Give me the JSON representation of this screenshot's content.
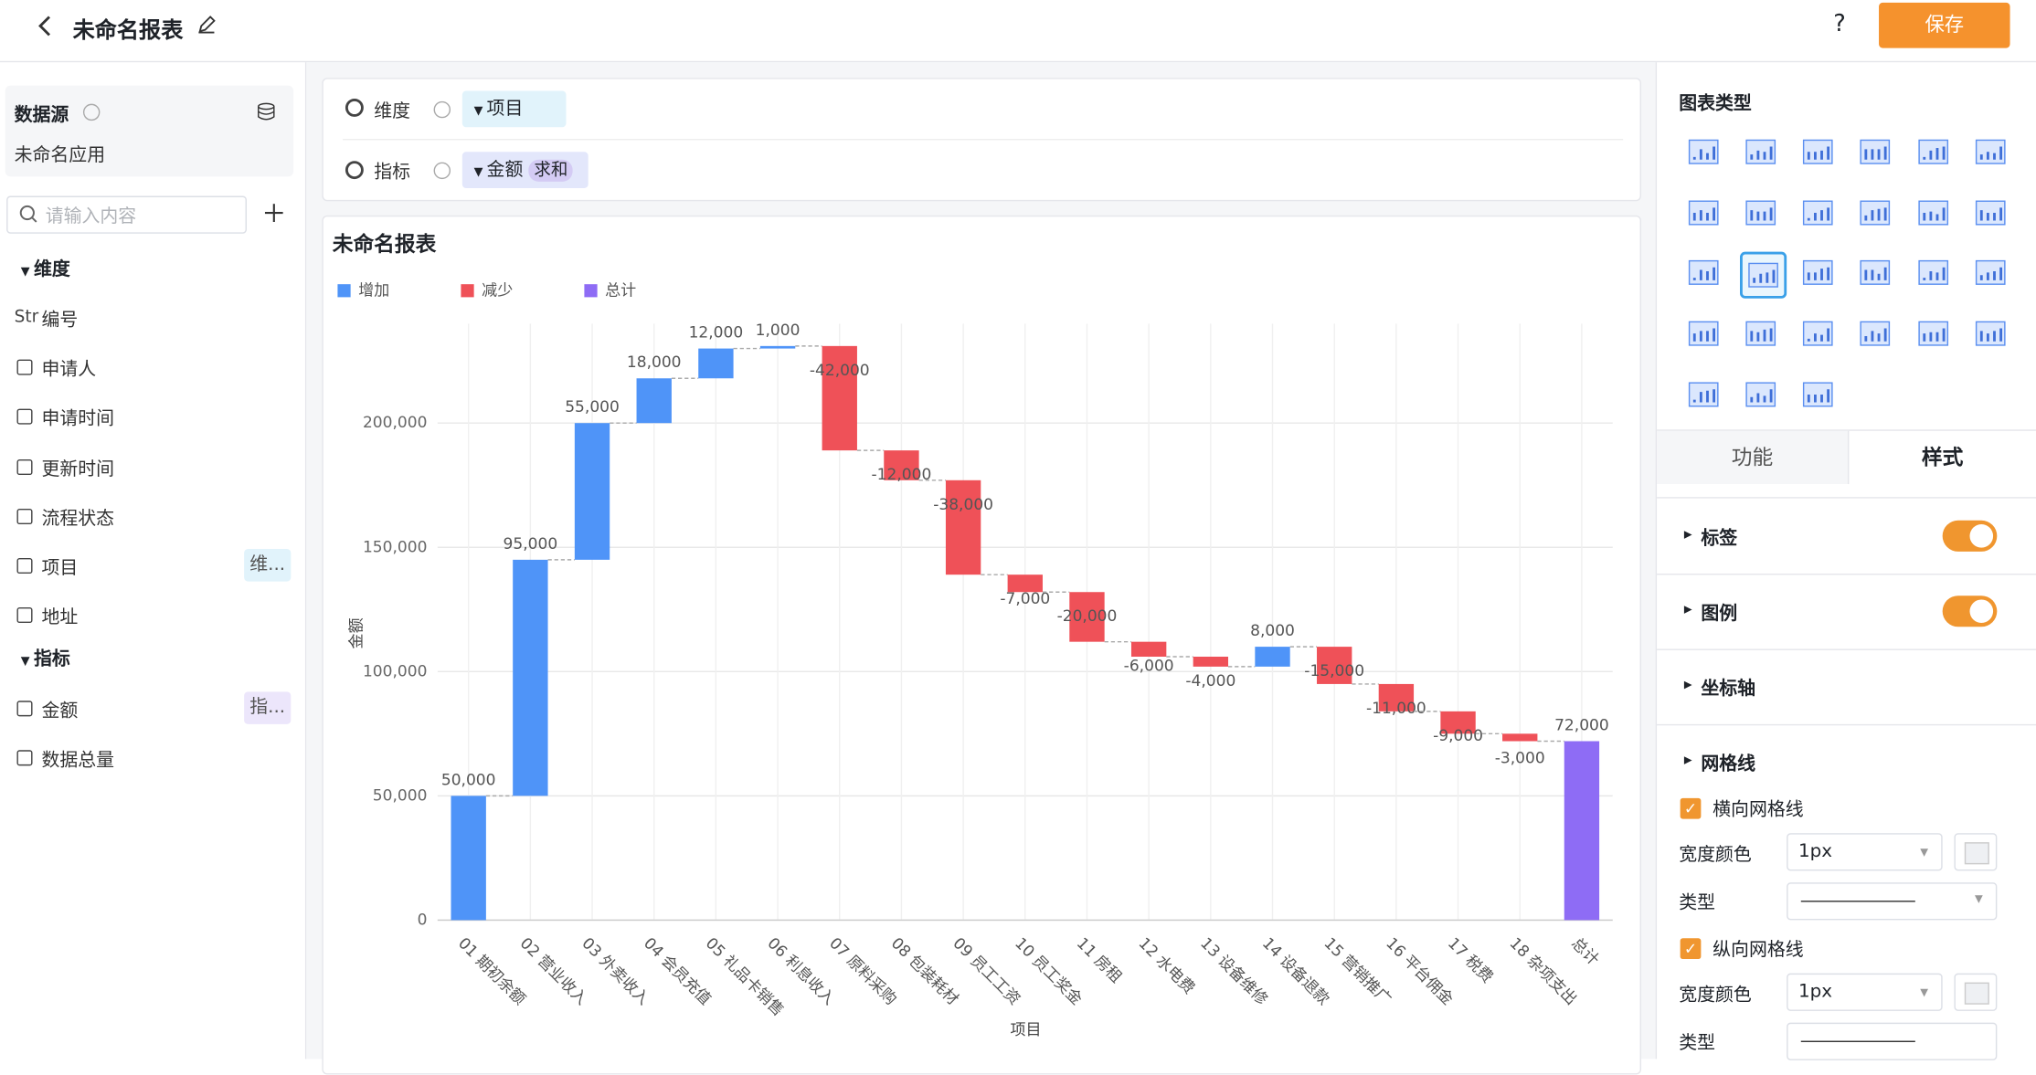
{
  "header": {
    "title": "未命名报表",
    "help": "?",
    "save": "保存"
  },
  "sidebar": {
    "datasource_title": "数据源",
    "datasource_name": "未命名应用",
    "search_placeholder": "请输入内容",
    "dimension_heading": "维度",
    "dimensions": [
      {
        "icon": "Str",
        "name": "编号"
      },
      {
        "name": "申请人"
      },
      {
        "name": "申请时间"
      },
      {
        "name": "更新时间"
      },
      {
        "name": "流程状态"
      },
      {
        "name": "项目",
        "tag": "维..."
      },
      {
        "name": "地址"
      }
    ],
    "measure_heading": "指标",
    "measures": [
      {
        "name": "金额",
        "tag": "指..."
      },
      {
        "name": "数据总量"
      }
    ]
  },
  "toolbar": {
    "dimension_label": "维度",
    "dimension_field": "项目",
    "measure_label": "指标",
    "measure_field": "金额",
    "measure_agg": "求和"
  },
  "panel": {
    "chart_type_title": "图表类型",
    "tabs": [
      "功能",
      "样式"
    ],
    "sections": [
      "标签",
      "图例",
      "坐标轴",
      "网格线"
    ],
    "horizontal_grid": "横向网格线",
    "vertical_grid": "纵向网格线",
    "width_color": "宽度颜色",
    "line_type": "类型",
    "width_value": "1px"
  },
  "chart_data": {
    "type": "waterfall",
    "title": "未命名报表",
    "legend": [
      {
        "name": "增加",
        "color": "#4f94f8"
      },
      {
        "name": "减少",
        "color": "#ef5158"
      },
      {
        "name": "总计",
        "color": "#8e6cf5"
      }
    ],
    "categories": [
      "01 期初余额",
      "02 营业收入",
      "03 外卖收入",
      "04 会员充值",
      "05 礼品卡销售",
      "06 利息收入",
      "07 原料采购",
      "08 包装耗材",
      "09 员工工资",
      "10 员工奖金",
      "11 房租",
      "12 水电费",
      "13 设备维修",
      "14 设备退款",
      "15 营销推广",
      "16 平台佣金",
      "17 税费",
      "18 杂项支出",
      "总计"
    ],
    "values": [
      50000,
      95000,
      55000,
      18000,
      12000,
      1000,
      -42000,
      -12000,
      -38000,
      -7000,
      -20000,
      -6000,
      -4000,
      8000,
      -15000,
      -11000,
      -9000,
      -3000,
      72000
    ],
    "value_labels": [
      "50,000",
      "95,000",
      "55,000",
      "18,000",
      "12,000",
      "1,000",
      "-42,000",
      "-12,000",
      "-38,000",
      "-7,000",
      "-20,000",
      "-6,000",
      "-4,000",
      "8,000",
      "-15,000",
      "-11,000",
      "-9,000",
      "-3,000",
      "72,000"
    ],
    "ylim": [
      0,
      240000
    ],
    "yticks": [
      0,
      {
        "value": 50000,
        "label": "50,000"
      },
      {
        "value": 100000,
        "label": "100,000"
      },
      {
        "value": 150000,
        "label": "150,000"
      },
      {
        "value": 200000,
        "label": "200,000"
      }
    ],
    "xlabel": "项目",
    "ylabel": "金额",
    "grid": true,
    "vertical_grid": true
  }
}
